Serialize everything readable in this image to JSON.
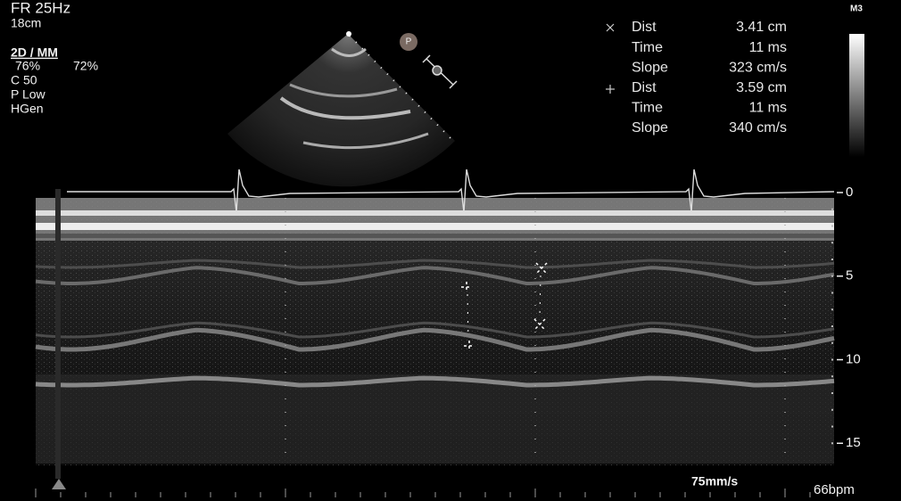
{
  "header": {
    "frame_rate": "FR 25Hz",
    "depth": "18cm",
    "mode": "2D / MM",
    "gain_2d": "76%",
    "gain_mm": "72%",
    "compression": "C 50",
    "power": "P Low",
    "frequency": "HGen"
  },
  "probe_label": "M3",
  "orientation_marker": "P",
  "measurements": [
    {
      "label": "Dist",
      "value": "3.41 cm"
    },
    {
      "label": "Time",
      "value": "11 ms"
    },
    {
      "label": "Slope",
      "value": "323 cm/s"
    },
    {
      "label": "Dist",
      "value": "3.59 cm"
    },
    {
      "label": "Time",
      "value": "11 ms"
    },
    {
      "label": "Slope",
      "value": "340 cm/s"
    }
  ],
  "depth_scale": {
    "ticks": [
      0,
      5,
      10,
      15
    ]
  },
  "sweep_speed": "75mm/s",
  "heart_rate": "66bpm"
}
